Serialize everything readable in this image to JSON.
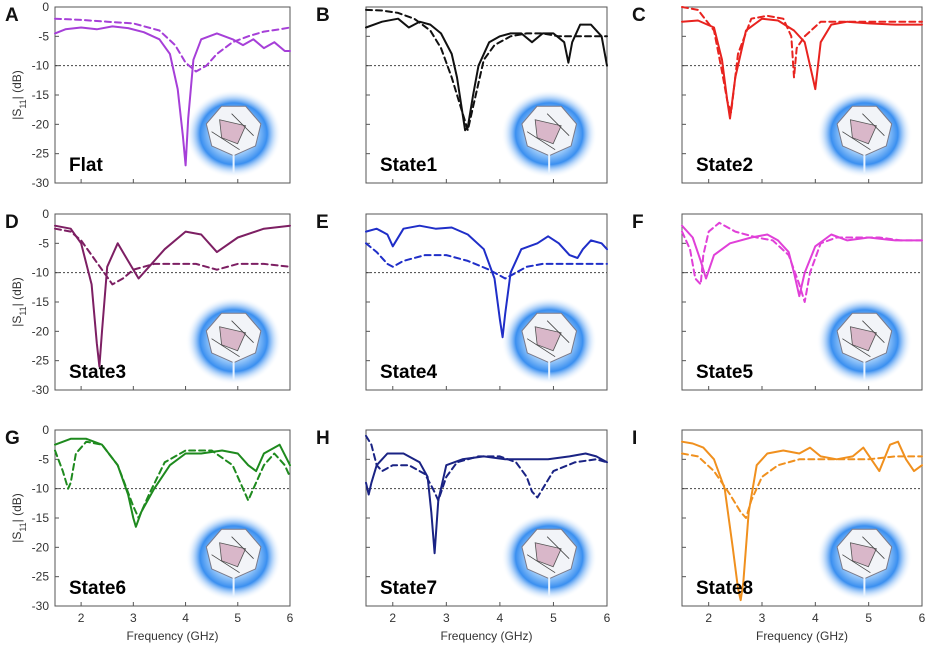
{
  "figure": {
    "freq_unit": "GHz"
  },
  "axes": {
    "xlabel": "Frequency (GHz)",
    "ylabel": "|S11| (dB)",
    "ylabel_main": "|S",
    "ylabel_sub": "11",
    "ylabel_tail": "| (dB)",
    "xticks": [
      "2",
      "3",
      "4",
      "5",
      "6"
    ],
    "yticks": [
      "0",
      "-5",
      "-10",
      "-15",
      "-20",
      "-25",
      "-30"
    ]
  },
  "chart_data": [
    {
      "type": "line",
      "panel": "A",
      "label": "Flat",
      "color": "#a63fd8",
      "xlim": [
        1.5,
        6
      ],
      "ylim": [
        -30,
        0
      ],
      "threshold": -10,
      "series": [
        {
          "style": "solid",
          "x": [
            1.5,
            1.7,
            2.0,
            2.3,
            2.6,
            2.9,
            3.2,
            3.5,
            3.7,
            3.85,
            3.95,
            4.0,
            4.05,
            4.15,
            4.3,
            4.6,
            4.9,
            5.1,
            5.3,
            5.5,
            5.7,
            5.9,
            6.0
          ],
          "y": [
            -4.5,
            -3.8,
            -3.5,
            -3.8,
            -3.3,
            -3.6,
            -4.3,
            -5.5,
            -8,
            -14,
            -22,
            -27,
            -19,
            -9,
            -5.5,
            -4.5,
            -5.5,
            -6.5,
            -5.5,
            -7,
            -6,
            -7.5,
            -7.5
          ]
        },
        {
          "style": "dashed",
          "x": [
            1.5,
            2.0,
            2.5,
            3.0,
            3.5,
            3.8,
            4.0,
            4.2,
            4.4,
            4.6,
            4.9,
            5.2,
            5.5,
            5.8,
            6.0
          ],
          "y": [
            -2,
            -2.2,
            -2.5,
            -2.8,
            -4,
            -6.5,
            -9.5,
            -11,
            -10,
            -8,
            -6,
            -5,
            -4.2,
            -3.8,
            -3.5
          ]
        }
      ]
    },
    {
      "type": "line",
      "panel": "B",
      "label": "State1",
      "color": "#111111",
      "xlim": [
        1.5,
        6
      ],
      "ylim": [
        -30,
        0
      ],
      "threshold": -10,
      "series": [
        {
          "style": "solid",
          "x": [
            1.5,
            1.8,
            2.1,
            2.3,
            2.5,
            2.7,
            2.9,
            3.1,
            3.2,
            3.3,
            3.35,
            3.4,
            3.5,
            3.6,
            3.8,
            4.0,
            4.2,
            4.4,
            4.6,
            4.8,
            5.0,
            5.2,
            5.28,
            5.35,
            5.5,
            5.7,
            5.9,
            6.0
          ],
          "y": [
            -3.5,
            -2.5,
            -2,
            -3.5,
            -2.5,
            -3,
            -4.5,
            -8,
            -12,
            -18,
            -21,
            -20.5,
            -15,
            -10,
            -6,
            -5,
            -4.5,
            -4.5,
            -6,
            -4.5,
            -4.5,
            -6,
            -9.5,
            -6,
            -3,
            -3,
            -5,
            -10
          ]
        },
        {
          "style": "dashed",
          "x": [
            1.5,
            1.8,
            2.1,
            2.4,
            2.7,
            2.9,
            3.1,
            3.3,
            3.4,
            3.5,
            3.7,
            3.9,
            4.2,
            4.5,
            4.8,
            5.1,
            5.4,
            5.7,
            6.0
          ],
          "y": [
            -0.5,
            -0.6,
            -1,
            -2,
            -4,
            -7,
            -12,
            -18,
            -21,
            -17,
            -9,
            -6.5,
            -5,
            -4.5,
            -4.5,
            -5,
            -5,
            -5,
            -5
          ]
        }
      ]
    },
    {
      "type": "line",
      "panel": "C",
      "label": "State2",
      "color": "#e8231f",
      "xlim": [
        1.5,
        6
      ],
      "ylim": [
        -30,
        0
      ],
      "threshold": -10,
      "series": [
        {
          "style": "solid",
          "x": [
            1.5,
            1.8,
            2.1,
            2.25,
            2.35,
            2.4,
            2.5,
            2.7,
            3.0,
            3.3,
            3.6,
            3.8,
            3.95,
            4.0,
            4.1,
            4.3,
            4.6,
            5.0,
            5.5,
            6.0
          ],
          "y": [
            -2.5,
            -2.3,
            -3.5,
            -9,
            -16,
            -19,
            -12,
            -4,
            -2,
            -2.3,
            -4,
            -6,
            -12,
            -14,
            -6,
            -3,
            -2.5,
            -2.8,
            -3,
            -3
          ]
        },
        {
          "style": "dashed",
          "x": [
            1.5,
            1.8,
            2.1,
            2.25,
            2.35,
            2.42,
            2.55,
            2.8,
            3.1,
            3.4,
            3.55,
            3.6,
            3.65,
            3.8,
            4.1,
            4.5,
            5.0,
            5.5,
            6.0
          ],
          "y": [
            0,
            -0.5,
            -4,
            -11,
            -16,
            -18,
            -8,
            -2,
            -1.5,
            -2,
            -5,
            -12,
            -7,
            -5,
            -2.5,
            -2.5,
            -2.5,
            -2.5,
            -2.5
          ]
        }
      ]
    },
    {
      "type": "line",
      "panel": "D",
      "label": "State3",
      "color": "#7d1f63",
      "xlim": [
        1.5,
        6
      ],
      "ylim": [
        -30,
        0
      ],
      "threshold": -10,
      "series": [
        {
          "style": "solid",
          "x": [
            1.5,
            1.8,
            2.0,
            2.2,
            2.3,
            2.35,
            2.4,
            2.5,
            2.7,
            2.9,
            3.1,
            3.3,
            3.6,
            4.0,
            4.3,
            4.6,
            5.0,
            5.5,
            6.0
          ],
          "y": [
            -2,
            -2.5,
            -5,
            -12,
            -22,
            -26,
            -20,
            -9,
            -5,
            -8,
            -11,
            -9,
            -6,
            -3,
            -3.5,
            -6.5,
            -4,
            -2.5,
            -2
          ]
        },
        {
          "style": "dashed",
          "x": [
            1.5,
            1.8,
            2.0,
            2.2,
            2.4,
            2.6,
            2.8,
            3.0,
            3.4,
            3.8,
            4.2,
            4.6,
            5.0,
            5.5,
            6.0
          ],
          "y": [
            -2.5,
            -3,
            -4.5,
            -7,
            -9.5,
            -12,
            -11,
            -9.5,
            -8.5,
            -8.5,
            -8.5,
            -9.5,
            -8.5,
            -8.5,
            -9
          ]
        }
      ]
    },
    {
      "type": "line",
      "panel": "E",
      "label": "State4",
      "color": "#1f2ec8",
      "xlim": [
        1.5,
        6
      ],
      "ylim": [
        -30,
        0
      ],
      "threshold": -10,
      "series": [
        {
          "style": "solid",
          "x": [
            1.5,
            1.7,
            1.9,
            2.0,
            2.2,
            2.5,
            2.8,
            3.1,
            3.4,
            3.7,
            3.9,
            4.0,
            4.05,
            4.1,
            4.2,
            4.4,
            4.7,
            4.9,
            5.1,
            5.3,
            5.45,
            5.55,
            5.7,
            5.9,
            6.0
          ],
          "y": [
            -3,
            -2.5,
            -3.5,
            -5.5,
            -2.5,
            -2,
            -2.5,
            -2.3,
            -3.5,
            -6,
            -11,
            -18,
            -21,
            -17,
            -10,
            -6,
            -5,
            -3.8,
            -5,
            -7,
            -7.5,
            -6,
            -4.5,
            -5,
            -6
          ]
        },
        {
          "style": "dashed",
          "x": [
            1.5,
            1.7,
            1.9,
            2.0,
            2.2,
            2.6,
            3.0,
            3.4,
            3.8,
            4.1,
            4.3,
            4.5,
            4.8,
            5.1,
            5.4,
            5.7,
            6.0
          ],
          "y": [
            -5,
            -6.5,
            -8.5,
            -9,
            -8,
            -7,
            -7,
            -8,
            -9.5,
            -11,
            -10,
            -9,
            -8.5,
            -8.5,
            -8.5,
            -8.5,
            -8.5
          ]
        }
      ]
    },
    {
      "type": "line",
      "panel": "F",
      "label": "State5",
      "color": "#e040d8",
      "xlim": [
        1.5,
        6
      ],
      "ylim": [
        -30,
        0
      ],
      "threshold": -10,
      "series": [
        {
          "style": "solid",
          "x": [
            1.5,
            1.7,
            1.85,
            1.95,
            2.1,
            2.4,
            2.8,
            3.1,
            3.3,
            3.5,
            3.6,
            3.7,
            3.8,
            4.0,
            4.3,
            4.6,
            5.0,
            5.5,
            6.0
          ],
          "y": [
            -2,
            -4,
            -8,
            -11,
            -7,
            -5,
            -4,
            -3.5,
            -4.5,
            -6.5,
            -10,
            -14,
            -10,
            -5.5,
            -3.5,
            -4.5,
            -4,
            -4.5,
            -4.5
          ]
        },
        {
          "style": "dashed",
          "x": [
            1.5,
            1.65,
            1.75,
            1.85,
            1.9,
            2.0,
            2.2,
            2.5,
            2.9,
            3.2,
            3.5,
            3.7,
            3.8,
            3.9,
            4.1,
            4.4,
            4.8,
            5.2,
            5.6,
            6.0
          ],
          "y": [
            -3,
            -6,
            -11,
            -12,
            -7,
            -3,
            -1.5,
            -3,
            -4,
            -4.5,
            -7,
            -12,
            -15,
            -10,
            -5,
            -4,
            -4,
            -4,
            -4.5,
            -4.5
          ]
        }
      ]
    },
    {
      "type": "line",
      "panel": "G",
      "label": "State6",
      "color": "#1e8a1e",
      "xlim": [
        1.5,
        6
      ],
      "ylim": [
        -30,
        0
      ],
      "threshold": -10,
      "series": [
        {
          "style": "solid",
          "x": [
            1.5,
            1.8,
            2.1,
            2.4,
            2.7,
            2.9,
            3.0,
            3.05,
            3.15,
            3.4,
            3.7,
            4.0,
            4.3,
            4.7,
            5.0,
            5.2,
            5.35,
            5.5,
            5.8,
            6.0
          ],
          "y": [
            -2.5,
            -1.5,
            -1.5,
            -2.5,
            -6,
            -11,
            -15,
            -16.5,
            -14,
            -10,
            -6,
            -4,
            -4,
            -3.5,
            -4,
            -6,
            -7,
            -4,
            -2.5,
            -6
          ]
        },
        {
          "style": "dashed",
          "x": [
            1.5,
            1.65,
            1.75,
            1.8,
            1.9,
            2.1,
            2.4,
            2.7,
            3.0,
            3.1,
            3.3,
            3.6,
            4.0,
            4.5,
            4.9,
            5.1,
            5.2,
            5.3,
            5.5,
            5.7,
            5.9,
            6.0
          ],
          "y": [
            -3.5,
            -7,
            -10,
            -9,
            -4,
            -2,
            -2.5,
            -6,
            -13,
            -15,
            -11,
            -5.5,
            -3.5,
            -3.5,
            -6,
            -10,
            -12,
            -10,
            -6,
            -4,
            -6,
            -8
          ]
        }
      ]
    },
    {
      "type": "line",
      "panel": "H",
      "label": "State7",
      "color": "#1a2384",
      "xlim": [
        1.5,
        6
      ],
      "ylim": [
        -30,
        0
      ],
      "threshold": -10,
      "series": [
        {
          "style": "solid",
          "x": [
            1.5,
            1.55,
            1.6,
            1.7,
            1.9,
            2.2,
            2.5,
            2.65,
            2.72,
            2.78,
            2.85,
            3.0,
            3.3,
            3.7,
            4.1,
            4.5,
            4.9,
            5.3,
            5.6,
            5.8,
            6.0
          ],
          "y": [
            -9,
            -11,
            -9,
            -6,
            -4,
            -4,
            -5.5,
            -8,
            -14,
            -21,
            -12,
            -6,
            -5,
            -4.5,
            -5,
            -5,
            -5,
            -4.5,
            -4,
            -4.5,
            -5.5
          ]
        },
        {
          "style": "dashed",
          "x": [
            1.5,
            1.6,
            1.7,
            1.8,
            2.0,
            2.3,
            2.6,
            2.75,
            2.85,
            3.0,
            3.2,
            3.6,
            4.0,
            4.3,
            4.5,
            4.6,
            4.7,
            4.8,
            5.0,
            5.4,
            5.8,
            6.0
          ],
          "y": [
            -1,
            -2.5,
            -6,
            -7,
            -6,
            -6,
            -7.5,
            -10,
            -12,
            -8,
            -5.5,
            -4.5,
            -4.5,
            -5.5,
            -8,
            -10.5,
            -11.5,
            -10,
            -7,
            -5.5,
            -5,
            -5.5
          ]
        }
      ]
    },
    {
      "type": "line",
      "panel": "I",
      "label": "State8",
      "color": "#f0901e",
      "xlim": [
        1.5,
        6
      ],
      "ylim": [
        -30,
        0
      ],
      "threshold": -10,
      "series": [
        {
          "style": "solid",
          "x": [
            1.5,
            1.7,
            1.9,
            2.1,
            2.3,
            2.45,
            2.55,
            2.6,
            2.65,
            2.75,
            2.9,
            3.1,
            3.4,
            3.7,
            3.9,
            4.1,
            4.4,
            4.7,
            4.9,
            5.05,
            5.2,
            5.4,
            5.55,
            5.7,
            5.85,
            6.0
          ],
          "y": [
            -2,
            -2.3,
            -3,
            -5,
            -10,
            -20,
            -27,
            -29,
            -26,
            -14,
            -6,
            -4,
            -3.5,
            -4,
            -3,
            -4.5,
            -5,
            -4.5,
            -3,
            -5,
            -7,
            -2.5,
            -2,
            -5,
            -7,
            -6
          ]
        },
        {
          "style": "dashed",
          "x": [
            1.5,
            1.8,
            2.1,
            2.4,
            2.6,
            2.7,
            2.8,
            3.0,
            3.3,
            3.7,
            4.1,
            4.5,
            5.0,
            5.5,
            6.0
          ],
          "y": [
            -4,
            -4.5,
            -7,
            -11,
            -14,
            -15,
            -12,
            -8,
            -6,
            -5,
            -5,
            -5,
            -5,
            -4.5,
            -4.5
          ]
        }
      ]
    }
  ]
}
